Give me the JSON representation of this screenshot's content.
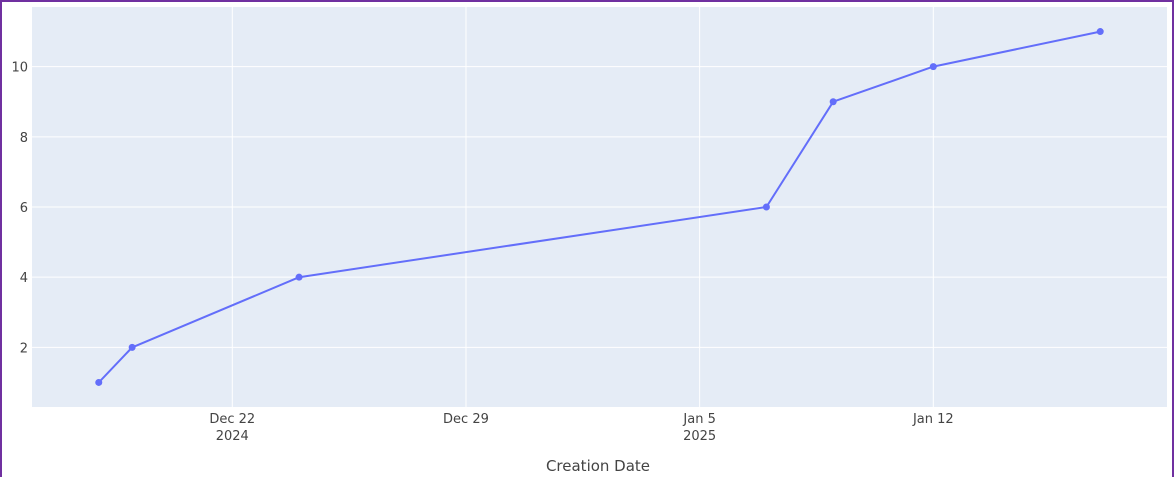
{
  "chart_data": {
    "type": "line",
    "title": "",
    "xlabel": "Creation Date",
    "ylabel": "",
    "x_type": "date",
    "xlim": [
      "2024-12-16",
      "2025-01-19"
    ],
    "ylim": [
      0.3,
      11.7
    ],
    "grid": true,
    "x_ticks": [
      {
        "value": "2024-12-22",
        "label": "Dec 22",
        "sublabel": "2024"
      },
      {
        "value": "2024-12-29",
        "label": "Dec 29",
        "sublabel": ""
      },
      {
        "value": "2025-01-05",
        "label": "Jan 5",
        "sublabel": "2025"
      },
      {
        "value": "2025-01-12",
        "label": "Jan 12",
        "sublabel": ""
      }
    ],
    "y_ticks": [
      2,
      4,
      6,
      8,
      10
    ],
    "series": [
      {
        "color": "#636efa",
        "x": [
          "2024-12-18",
          "2024-12-19",
          "2024-12-24",
          "2025-01-07",
          "2025-01-09",
          "2025-01-12",
          "2025-01-17"
        ],
        "y": [
          1,
          2,
          4,
          6,
          9,
          10,
          11
        ]
      }
    ]
  },
  "colors": {
    "plot_bg": "#e5ecf6",
    "grid": "#ffffff",
    "frame": "#7030a0"
  }
}
